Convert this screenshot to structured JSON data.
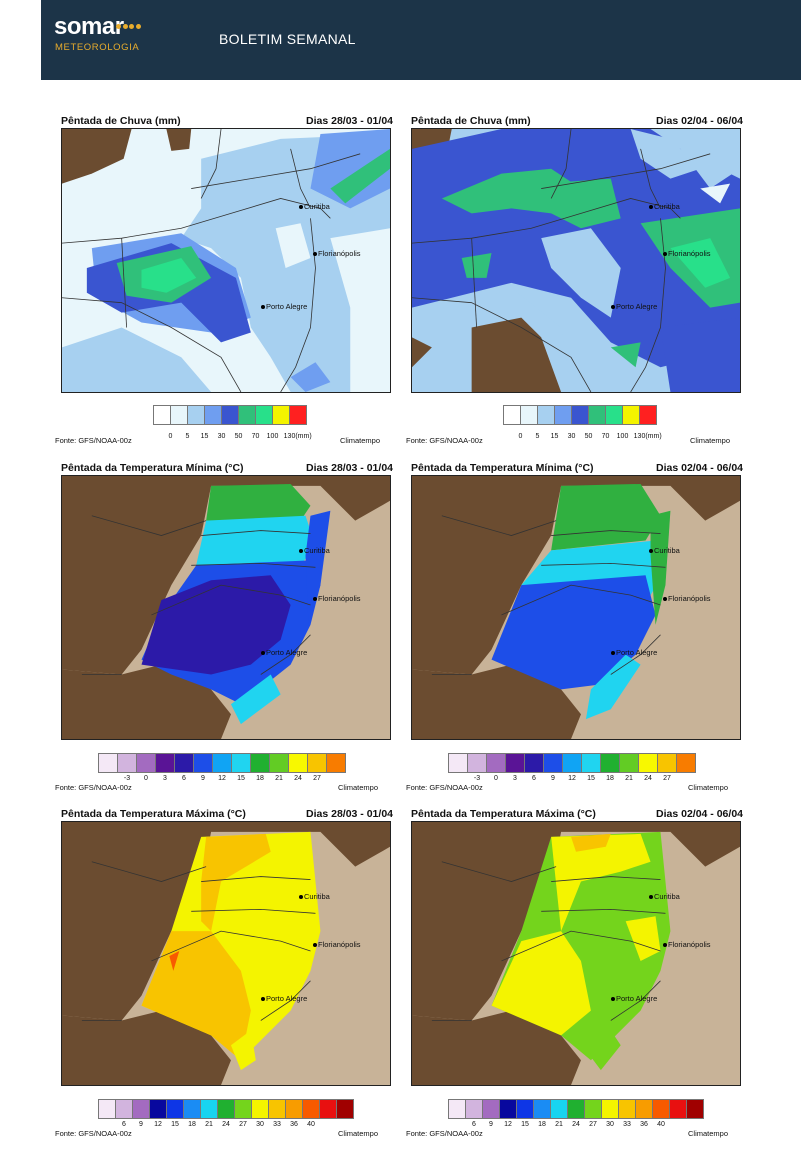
{
  "header": {
    "logo_main": "somar",
    "logo_sub": "METEOROLOGIA",
    "title": "BOLETIM SEMANAL"
  },
  "panels": [
    {
      "title": "Pêntada de Chuva (mm)",
      "dates": "Dias 28/03 - 01/04"
    },
    {
      "title": "Pêntada de Chuva (mm)",
      "dates": "Dias 02/04 - 06/04"
    },
    {
      "title": "Pêntada da Temperatura Mínima (°C)",
      "dates": "Dias 28/03 - 01/04"
    },
    {
      "title": "Pêntada da Temperatura Mínima (°C)",
      "dates": "Dias 02/04 - 06/04"
    },
    {
      "title": "Pêntada da Temperatura Máxima (°C)",
      "dates": "Dias 28/03 - 01/04"
    },
    {
      "title": "Pêntada da Temperatura Máxima (°C)",
      "dates": "Dias 02/04 - 06/04"
    }
  ],
  "cities": {
    "curitiba": "Curitiba",
    "florianopolis": "Florianópolis",
    "porto_alegre": "Porto Alegre"
  },
  "source": "Fonte: GFS/NOAA-00z",
  "credit": "Climatempo",
  "legends": {
    "rain": {
      "colors": [
        "#ffffff",
        "#e8f6fb",
        "#a7d0f0",
        "#6f9ef0",
        "#3a55d0",
        "#30c07a",
        "#28e08a",
        "#f4f400",
        "#ff2020"
      ],
      "ticks": [
        "0",
        "5",
        "15",
        "30",
        "50",
        "70",
        "100",
        "130"
      ],
      "unit": "(mm)"
    },
    "tmin": {
      "colors": [
        "#f4e8f6",
        "#d2b4de",
        "#a36bc0",
        "#5a1496",
        "#2c1aa8",
        "#1d4ee8",
        "#10a4f4",
        "#20d4f0",
        "#20b030",
        "#62cc24",
        "#f8f800",
        "#f8c400",
        "#f87c00"
      ],
      "ticks": [
        "-3",
        "0",
        "3",
        "6",
        "9",
        "12",
        "15",
        "18",
        "21",
        "24",
        "27"
      ]
    },
    "tmax": {
      "colors": [
        "#f4e8f6",
        "#d2b4de",
        "#a36bc0",
        "#08089e",
        "#0e36e6",
        "#1a8cf4",
        "#18d4f0",
        "#20b030",
        "#74d41c",
        "#f4f400",
        "#f8c400",
        "#f89c00",
        "#f85a00",
        "#e81010",
        "#a00000"
      ],
      "ticks": [
        "6",
        "9",
        "12",
        "15",
        "18",
        "21",
        "24",
        "27",
        "30",
        "33",
        "36",
        "40"
      ]
    }
  }
}
